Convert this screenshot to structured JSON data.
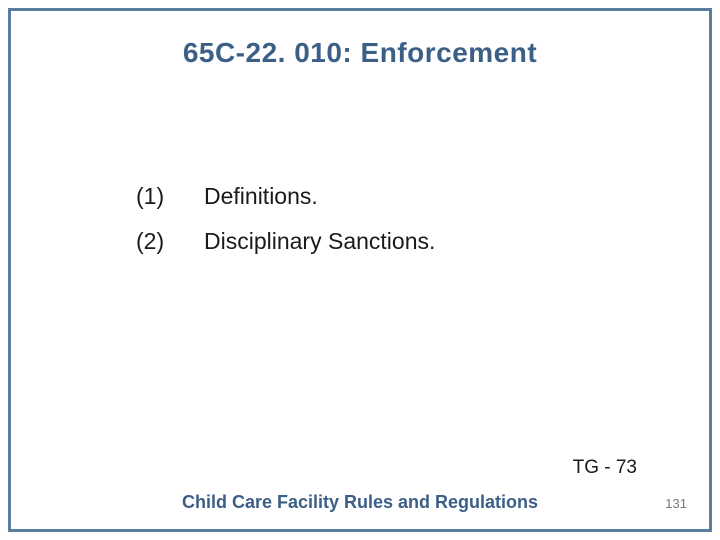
{
  "frame": {
    "border_color": "#5b7ea3"
  },
  "title": {
    "text": "65C-22. 010: Enforcement",
    "color": "#3b5f87",
    "fontsize": 28
  },
  "items": [
    {
      "num": "(1)",
      "text": "Definitions."
    },
    {
      "num": "(2)",
      "text": "Disciplinary Sanctions."
    }
  ],
  "body": {
    "color": "#1a1a1a",
    "fontsize": 23
  },
  "tg": {
    "text": "TG - 73",
    "color": "#1a1a1a",
    "fontsize": 19
  },
  "footer": {
    "text": "Child Care Facility Rules and Regulations",
    "color": "#3b5f87",
    "fontsize": 18
  },
  "page_number": {
    "text": "131",
    "color": "#7a7a7a",
    "fontsize": 13
  }
}
